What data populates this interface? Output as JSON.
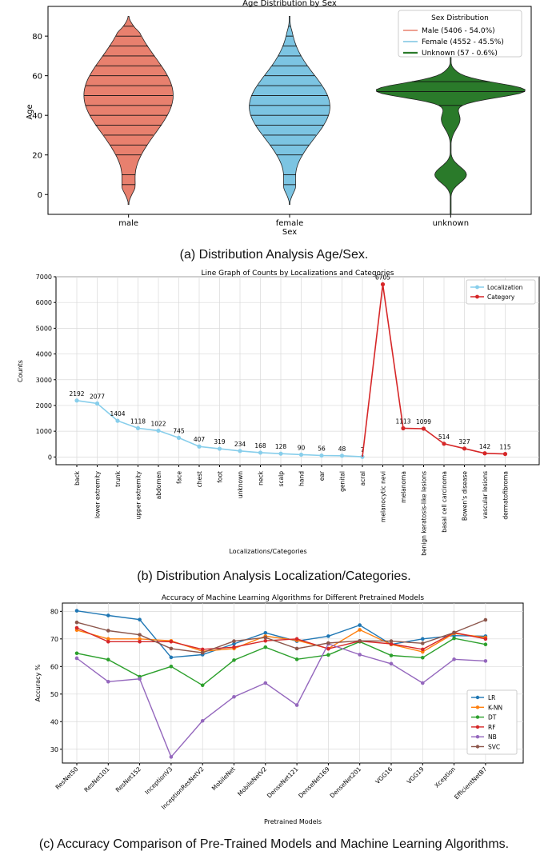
{
  "captions": {
    "a": "(a)  Distribution Analysis Age/Sex.",
    "b": "(b)  Distribution Analysis Localization/Categories.",
    "c": "(c) Accuracy Comparison of Pre-Trained Models and Machine Learning Algorithms."
  },
  "chart_data": [
    {
      "type": "violin",
      "title": "Age Distribution by Sex",
      "xlabel": "Sex",
      "ylabel": "Age",
      "categories": [
        "male",
        "female",
        "unknown"
      ],
      "ylim": [
        -10,
        95
      ],
      "yticks": [
        0,
        20,
        40,
        60,
        80
      ],
      "legend_title": "Sex Distribution",
      "legend_position": "top-right",
      "series": [
        {
          "name": "Male (5406 - 54.0%)",
          "category": "male",
          "color": "#e8806e",
          "min": -5,
          "max": 90,
          "median": 50
        },
        {
          "name": "Female (4552 - 45.5%)",
          "category": "female",
          "color": "#7cc4e2",
          "min": -5,
          "max": 90,
          "median": 45
        },
        {
          "name": "Unknown (57 - 0.6%)",
          "category": "unknown",
          "color": "#2a7a2a",
          "min": -10,
          "max": 70,
          "median": 52
        }
      ]
    },
    {
      "type": "line",
      "title": "Line Graph of Counts by Localizations and Categories",
      "xlabel": "Localizations/Categories",
      "ylabel": "Counts",
      "ylim": [
        -300,
        7000
      ],
      "yticks": [
        0,
        1000,
        2000,
        3000,
        4000,
        5000,
        6000,
        7000
      ],
      "grid": true,
      "legend_position": "top-right",
      "series": [
        {
          "name": "Localization",
          "color": "#87ceeb",
          "x": [
            "back",
            "lower extremity",
            "trunk",
            "upper extremity",
            "abdomen",
            "face",
            "chest",
            "foot",
            "unknown",
            "neck",
            "scalp",
            "hand",
            "ear",
            "genital",
            "acral"
          ],
          "values": [
            2192,
            2077,
            1404,
            1118,
            1022,
            745,
            407,
            319,
            234,
            168,
            128,
            90,
            56,
            48,
            7
          ]
        },
        {
          "name": "Category",
          "color": "#d62728",
          "x": [
            "melanocytic nevi",
            "melanoma",
            "benign keratosis-like lesions",
            "basal cell carcinoma",
            "Bowen's disease",
            "vascular lesions",
            "dermatofibroma"
          ],
          "values": [
            6705,
            1113,
            1099,
            514,
            327,
            142,
            115
          ]
        }
      ]
    },
    {
      "type": "line",
      "title": "Accuracy of Machine Learning Algorithms for Different Pretrained Models",
      "xlabel": "Pretrained Models",
      "ylabel": "Accuracy %",
      "ylim": [
        25,
        83
      ],
      "yticks": [
        30,
        40,
        50,
        60,
        70,
        80
      ],
      "grid": true,
      "legend_position": "bottom-right",
      "categories": [
        "ResNet50",
        "ResNet101",
        "ResNet152",
        "InceptionV3",
        "InceptionResNetV2",
        "MobileNet",
        "MobileNetV2",
        "DenseNet121",
        "DenseNet169",
        "DenseNet201",
        "VGG16",
        "VGG19",
        "Xception",
        "EfficientNetB7"
      ],
      "series": [
        {
          "name": "LR",
          "color": "#1f77b4",
          "values": [
            80.2,
            78.5,
            77,
            63.3,
            64.3,
            68.2,
            72.2,
            69.2,
            71,
            75,
            68,
            70,
            71.2,
            71
          ]
        },
        {
          "name": "K-NN",
          "color": "#ff7f0e",
          "values": [
            73.2,
            70,
            70,
            69.3,
            65.5,
            66.5,
            71,
            69.5,
            66.5,
            73.3,
            68,
            65.3,
            72,
            70.5
          ]
        },
        {
          "name": "DT",
          "color": "#2ca02c",
          "values": [
            64.8,
            62.5,
            56.3,
            60,
            53.2,
            62.3,
            67,
            62.6,
            64.2,
            69,
            64,
            63.2,
            70.2,
            68
          ]
        },
        {
          "name": "RF",
          "color": "#d62728",
          "values": [
            74,
            69,
            69,
            69,
            66.2,
            67,
            69.3,
            70,
            66.4,
            69.2,
            68.2,
            66.2,
            72.3,
            70
          ]
        },
        {
          "name": "NB",
          "color": "#9467bd",
          "values": [
            63,
            54.5,
            55.5,
            27.2,
            40.3,
            49,
            54,
            46,
            68.2,
            64.3,
            61,
            54,
            62.6,
            62
          ]
        },
        {
          "name": "SVC",
          "color": "#8c564b",
          "values": [
            76,
            73,
            71.5,
            66.5,
            65,
            69.2,
            70.5,
            66.5,
            68.5,
            69.3,
            69.2,
            68.4,
            72.3,
            76.9
          ]
        }
      ]
    }
  ]
}
